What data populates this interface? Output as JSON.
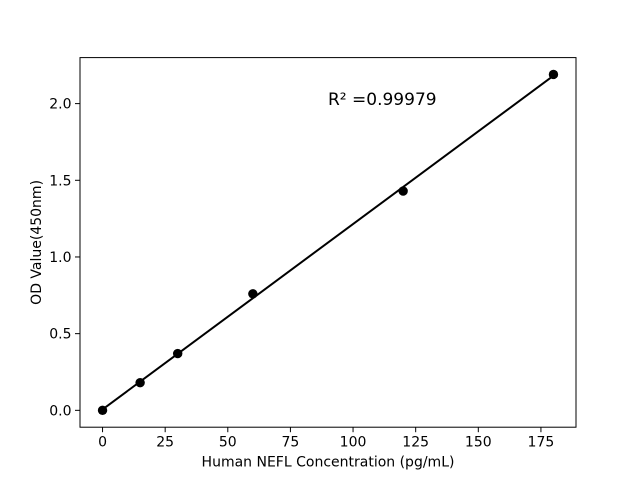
{
  "chart_data": {
    "type": "scatter",
    "xlabel": "Human NEFL Concentration (pg/mL)",
    "ylabel": "OD Value(450nm)",
    "annotation": "R² =0.99979",
    "annotation_pos": {
      "x": 90,
      "y": 2.0
    },
    "x": [
      0,
      15,
      30,
      60,
      120,
      180
    ],
    "y": [
      0.0,
      0.18,
      0.37,
      0.76,
      1.43,
      2.19
    ],
    "fit_line": {
      "x": [
        0,
        180
      ],
      "y": [
        0.006,
        2.182
      ]
    },
    "xlim": [
      -9,
      189
    ],
    "ylim": [
      -0.11,
      2.3
    ],
    "xticks": {
      "values": [
        0,
        25,
        50,
        75,
        100,
        125,
        150,
        175
      ],
      "labels": [
        "0",
        "25",
        "50",
        "75",
        "100",
        "125",
        "150",
        "175"
      ]
    },
    "yticks": {
      "values": [
        0,
        0.5,
        1.0,
        1.5,
        2.0
      ],
      "labels": [
        "0.0",
        "0.5",
        "1.0",
        "1.5",
        "2.0"
      ]
    },
    "grid": false,
    "colors": {
      "marker": "#000000",
      "line": "#000000",
      "axis": "#000000",
      "text": "#000000",
      "background": "#ffffff"
    }
  }
}
